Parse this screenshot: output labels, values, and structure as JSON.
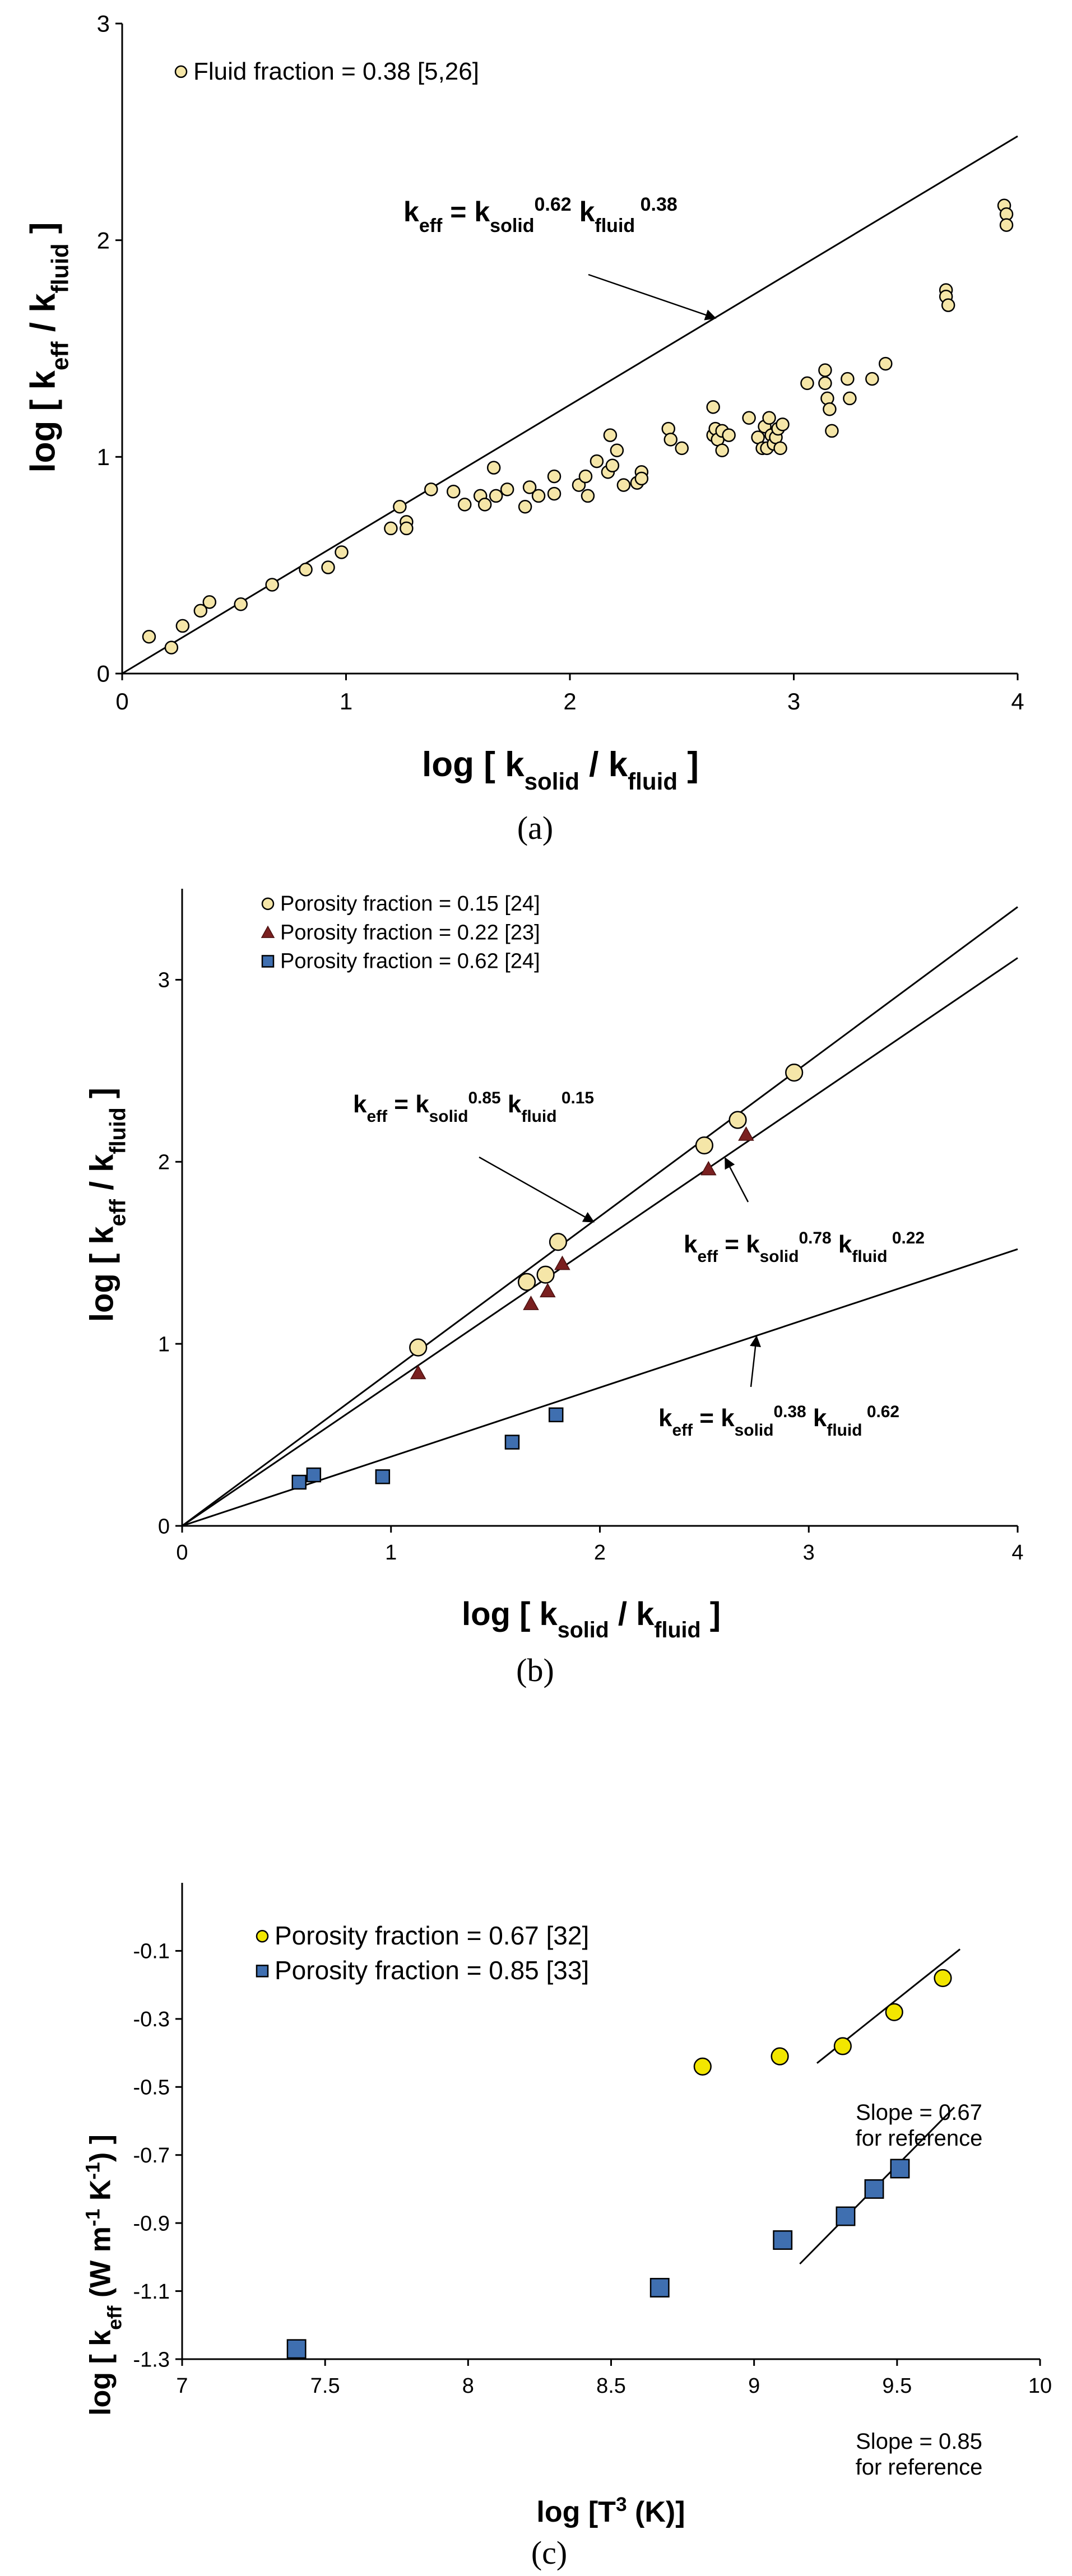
{
  "chart_data": [
    {
      "id": "a",
      "type": "scatter",
      "panel_label": "(a)",
      "xlim": [
        0,
        4
      ],
      "ylim": [
        0,
        3
      ],
      "xticks": [
        0,
        1,
        2,
        3,
        4
      ],
      "yticks": [
        0,
        1,
        2,
        3
      ],
      "xlabel_parts": [
        "log [ k",
        "solid",
        " / k",
        "fluid",
        " ]"
      ],
      "ylabel_parts": [
        "log [ k",
        "eff",
        " / k",
        "fluid",
        " ]"
      ],
      "series": [
        {
          "name": "Fluid fraction = 0.38 [5,26]",
          "marker": "circle",
          "color": "#f5e6a8",
          "x": [
            0.12,
            0.22,
            0.27,
            0.35,
            0.39,
            0.53,
            0.67,
            0.82,
            0.92,
            0.98,
            1.2,
            1.24,
            1.27,
            1.27,
            1.38,
            1.48,
            1.53,
            1.6,
            1.62,
            1.66,
            1.67,
            1.72,
            1.8,
            1.82,
            1.86,
            1.93,
            1.93,
            2.04,
            2.07,
            2.08,
            2.12,
            2.17,
            2.18,
            2.19,
            2.21,
            2.24,
            2.3,
            2.32,
            2.32,
            2.44,
            2.45,
            2.5,
            2.64,
            2.64,
            2.65,
            2.66,
            2.68,
            2.68,
            2.71,
            2.8,
            2.84,
            2.86,
            2.87,
            2.88,
            2.89,
            2.9,
            2.91,
            2.92,
            2.93,
            2.94,
            2.95,
            3.06,
            3.14,
            3.14,
            3.15,
            3.16,
            3.17,
            3.24,
            3.25,
            3.35,
            3.41,
            3.68,
            3.68,
            3.69,
            3.94,
            3.95,
            3.95
          ],
          "y": [
            0.17,
            0.12,
            0.22,
            0.29,
            0.33,
            0.32,
            0.41,
            0.48,
            0.49,
            0.56,
            0.67,
            0.77,
            0.7,
            0.67,
            0.85,
            0.84,
            0.78,
            0.82,
            0.78,
            0.95,
            0.82,
            0.85,
            0.77,
            0.86,
            0.82,
            0.91,
            0.83,
            0.87,
            0.91,
            0.82,
            0.98,
            0.93,
            1.1,
            0.96,
            1.03,
            0.87,
            0.88,
            0.93,
            0.9,
            1.13,
            1.08,
            1.04,
            1.23,
            1.1,
            1.13,
            1.08,
            1.12,
            1.03,
            1.1,
            1.18,
            1.09,
            1.04,
            1.14,
            1.04,
            1.18,
            1.1,
            1.06,
            1.09,
            1.13,
            1.04,
            1.15,
            1.34,
            1.4,
            1.34,
            1.27,
            1.22,
            1.12,
            1.36,
            1.27,
            1.36,
            1.43,
            1.77,
            1.74,
            1.7,
            2.16,
            2.12,
            2.07
          ]
        }
      ],
      "lines": [
        {
          "name": "k_eff = k_solid^0.62 k_fluid^0.38",
          "slope": 0.62,
          "intercept": 0
        }
      ],
      "annotations": [
        {
          "parts": [
            "k",
            "eff",
            " = k",
            "solid",
            "0.62",
            " k",
            "fluid",
            " 0.38"
          ],
          "arrow_to": [
            2.65,
            1.64
          ]
        }
      ]
    },
    {
      "id": "b",
      "type": "scatter",
      "panel_label": "(b)",
      "xlim": [
        0,
        4
      ],
      "ylim": [
        0,
        3.5
      ],
      "xticks": [
        0,
        1,
        2,
        3,
        4
      ],
      "yticks": [
        0,
        1,
        2,
        3
      ],
      "xlabel_parts": [
        "log [ k",
        "solid",
        " / k",
        "fluid",
        " ]"
      ],
      "ylabel_parts": [
        "log [ k",
        "eff",
        " / k",
        "fluid",
        " ]"
      ],
      "series": [
        {
          "name": "Porosity fraction = 0.15 [24]",
          "marker": "circle",
          "color": "#f5e6a8",
          "x": [
            1.13,
            1.65,
            1.74,
            1.8,
            2.5,
            2.66,
            2.93
          ],
          "y": [
            0.98,
            1.34,
            1.38,
            1.56,
            2.09,
            2.23,
            2.49
          ]
        },
        {
          "name": "Porosity fraction = 0.22 [23]",
          "marker": "triangle",
          "color": "#7a2020",
          "x": [
            1.13,
            1.67,
            1.75,
            1.82,
            2.52,
            2.7
          ],
          "y": [
            0.84,
            1.22,
            1.29,
            1.44,
            1.96,
            2.15
          ]
        },
        {
          "name": "Porosity fraction = 0.62 [24]",
          "marker": "square",
          "color": "#3f6fb0",
          "x": [
            0.56,
            0.63,
            0.96,
            1.58,
            1.79
          ],
          "y": [
            0.24,
            0.28,
            0.27,
            0.46,
            0.61
          ]
        }
      ],
      "lines": [
        {
          "name": "k_eff = k_solid^0.85 k_fluid^0.15",
          "slope": 0.85,
          "intercept": 0
        },
        {
          "name": "k_eff = k_solid^0.78 k_fluid^0.22",
          "slope": 0.78,
          "intercept": 0
        },
        {
          "name": "k_eff = k_solid^0.38 k_fluid^0.62",
          "slope": 0.38,
          "intercept": 0
        }
      ],
      "annotations": [
        {
          "parts": [
            "k",
            "eff",
            " = k",
            "solid",
            "0.85",
            " k",
            "fluid",
            " 0.15"
          ],
          "arrow_to": [
            1.97,
            1.67
          ]
        },
        {
          "parts": [
            "k",
            "eff",
            " = k",
            "solid",
            "0.78",
            " k",
            "fluid",
            " 0.22"
          ],
          "arrow_to": [
            2.6,
            2.02
          ]
        },
        {
          "parts": [
            "k",
            "eff",
            " = k",
            "solid",
            "0.38",
            " k",
            "fluid",
            " 0.62"
          ],
          "arrow_to": [
            2.75,
            1.04
          ]
        }
      ]
    },
    {
      "id": "c",
      "type": "scatter",
      "panel_label": "(c)",
      "xlim": [
        7,
        10
      ],
      "ylim": [
        -1.3,
        0.1
      ],
      "xticks": [
        7,
        7.5,
        8,
        8.5,
        9,
        9.5,
        10
      ],
      "xtick_labels": [
        "7",
        "7.5",
        "8",
        "8.5",
        "9",
        "9.5",
        "10"
      ],
      "yticks": [
        -1.3,
        -1.1,
        -0.9,
        -0.7,
        -0.5,
        -0.3,
        -0.1
      ],
      "ytick_labels": [
        "-1.3",
        "-1.1",
        "-0.9",
        "-0.7",
        "-0.5",
        "-0.3",
        "-0.1"
      ],
      "xlabel_parts": [
        "log [T",
        "3",
        " (K)]"
      ],
      "ylabel_parts": [
        "log [ k",
        "eff",
        " (W m",
        "-1",
        " K",
        "-1",
        ") ]"
      ],
      "series": [
        {
          "name": "Porosity fraction = 0.67 [32]",
          "marker": "circle",
          "color": "#f2e600",
          "x": [
            8.82,
            9.09,
            9.31,
            9.49,
            9.66
          ],
          "y": [
            -0.44,
            -0.41,
            -0.38,
            -0.28,
            -0.18
          ]
        },
        {
          "name": "Porosity fraction = 0.85 [33]",
          "marker": "square",
          "color": "#3f6fb0",
          "x": [
            7.4,
            8.67,
            9.1,
            9.32,
            9.42,
            9.51
          ],
          "y": [
            -1.27,
            -1.09,
            -0.95,
            -0.88,
            -0.8,
            -0.74
          ]
        }
      ],
      "ref_lines": [
        {
          "x": [
            9.22,
            9.72
          ],
          "y": [
            -0.43,
            -0.095
          ]
        },
        {
          "x": [
            9.16,
            9.7
          ],
          "y": [
            -1.02,
            -0.56
          ]
        }
      ],
      "notes": [
        {
          "lines": [
            "Slope = 0.67",
            "for reference"
          ]
        },
        {
          "lines": [
            "Slope = 0.85",
            "for reference"
          ]
        }
      ]
    }
  ]
}
